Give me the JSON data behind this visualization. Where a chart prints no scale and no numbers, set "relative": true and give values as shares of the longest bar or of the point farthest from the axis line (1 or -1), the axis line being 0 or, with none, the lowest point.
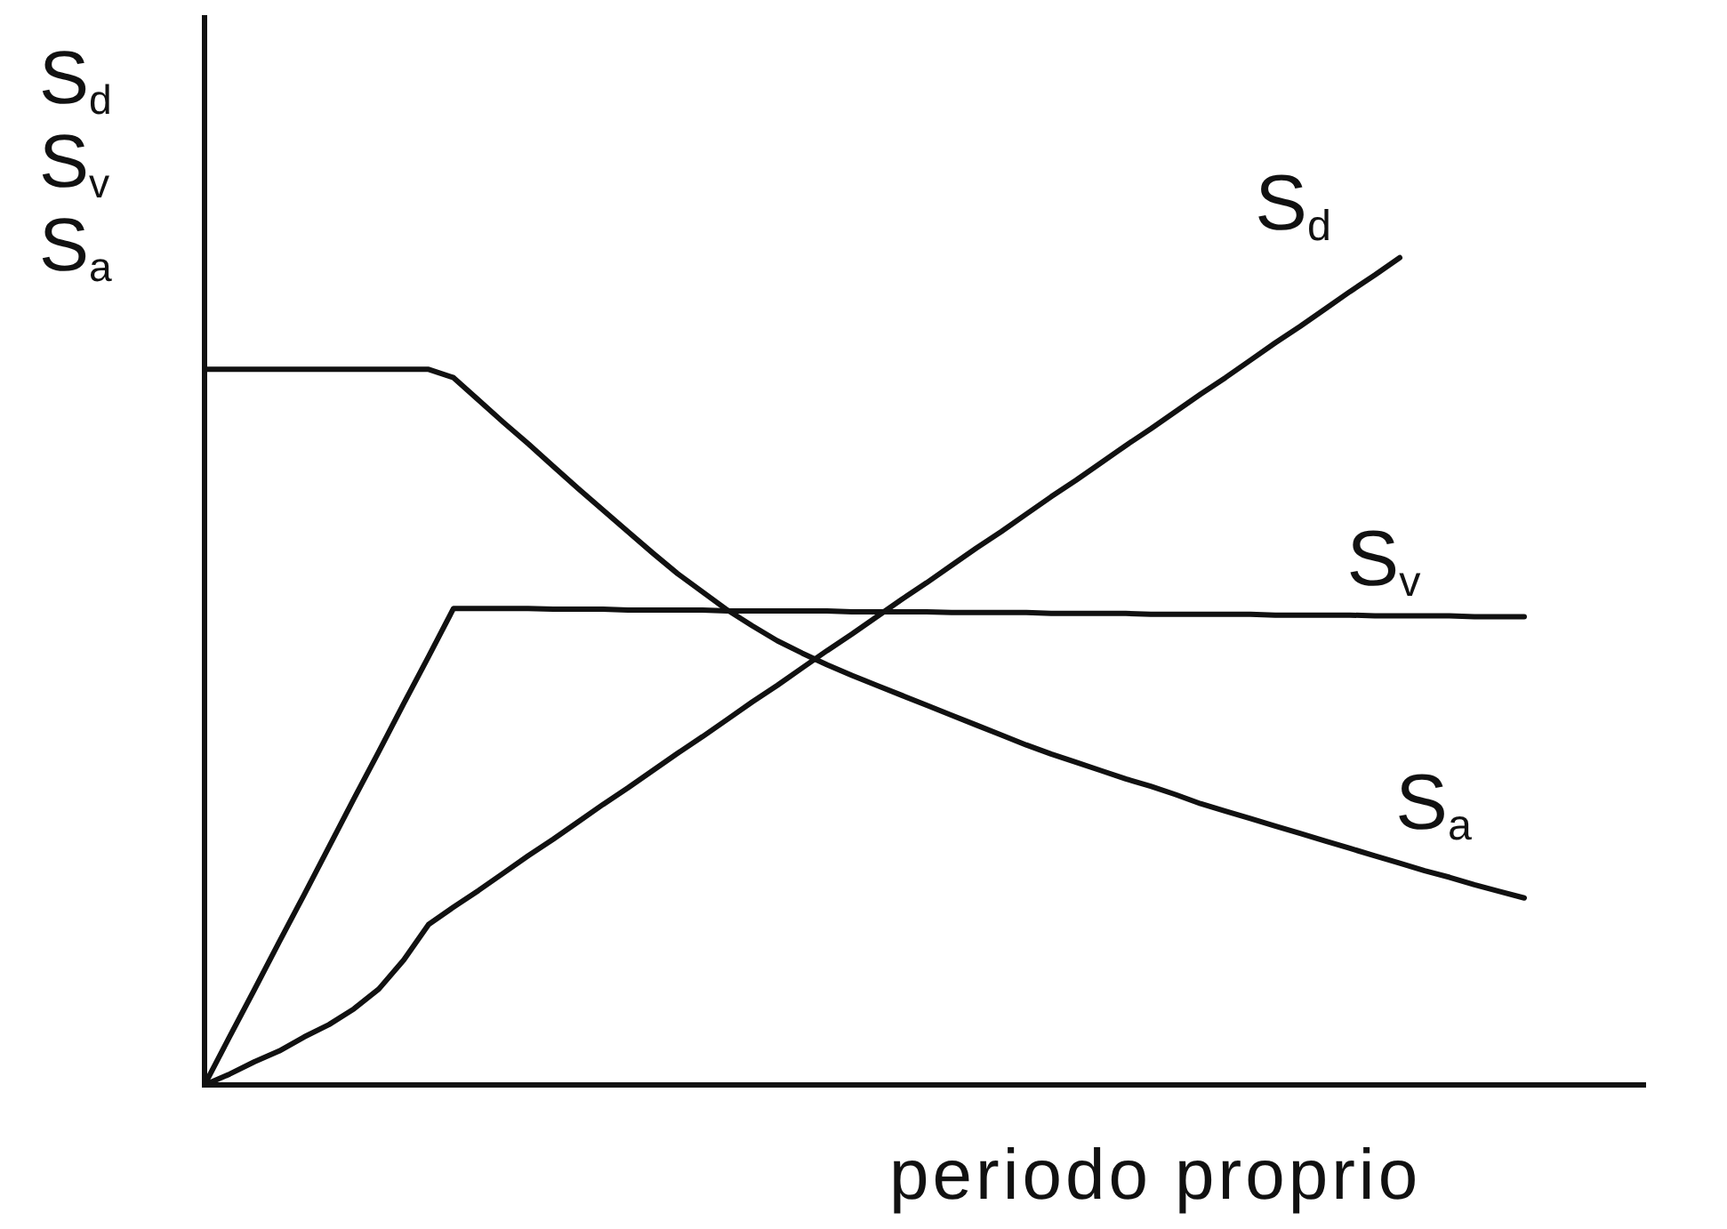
{
  "chart_data": {
    "type": "line",
    "xlabel": "periodo proprio",
    "ylabel": "S$_{d}$\nS$_{v}$\nS$_{a}$",
    "relative": true,
    "marker": "none",
    "line_style": "solid",
    "categories": [
      null,
      null,
      null,
      null,
      null,
      null,
      null,
      null,
      null,
      null,
      null,
      null,
      null,
      null,
      null,
      null,
      null,
      null,
      null,
      null,
      null,
      null,
      null,
      null,
      null,
      null,
      null,
      null,
      null,
      null,
      null,
      null,
      null,
      null,
      null,
      null,
      null,
      null,
      null,
      null,
      null,
      null,
      null,
      null,
      null,
      null,
      null,
      null,
      null,
      null,
      null,
      null,
      null,
      null
    ],
    "series": [
      {
        "name": "S$_{d}$",
        "color": "#111111",
        "values": [
          0,
          0.013,
          0.028,
          0.041,
          0.058,
          0.073,
          0.092,
          0.116,
          0.151,
          0.194,
          0.215,
          0.235,
          0.256,
          0.277,
          0.297,
          0.318,
          0.339,
          0.359,
          0.38,
          0.401,
          0.421,
          0.442,
          0.463,
          0.483,
          0.504,
          0.525,
          0.545,
          0.566,
          0.587,
          0.607,
          0.628,
          0.649,
          0.669,
          0.69,
          0.711,
          0.731,
          0.752,
          0.773,
          0.793,
          0.814,
          0.835,
          0.855,
          0.876,
          0.897,
          0.917,
          0.938,
          0.959,
          0.979,
          1,
          null,
          null,
          null,
          null,
          null
        ]
      },
      {
        "name": "S$_{v}$",
        "color": "#111111",
        "values": [
          0,
          0.058,
          0.115,
          0.173,
          0.23,
          0.288,
          0.346,
          0.403,
          0.461,
          0.518,
          0.576,
          0.576,
          0.576,
          0.576,
          0.575,
          0.575,
          0.575,
          0.574,
          0.574,
          0.574,
          0.574,
          0.573,
          0.573,
          0.573,
          0.573,
          0.573,
          0.572,
          0.572,
          0.572,
          0.572,
          0.571,
          0.571,
          0.571,
          0.571,
          0.57,
          0.57,
          0.57,
          0.57,
          0.569,
          0.569,
          0.569,
          0.569,
          0.569,
          0.568,
          0.568,
          0.568,
          0.568,
          0.567,
          0.567,
          0.567,
          0.567,
          0.566,
          0.566,
          0.566
        ]
      },
      {
        "name": "S$_{a}$",
        "color": "#111111",
        "values": [
          0.865,
          0.865,
          0.865,
          0.865,
          0.865,
          0.865,
          0.865,
          0.865,
          0.865,
          0.865,
          0.855,
          0.828,
          0.801,
          0.775,
          0.748,
          0.721,
          0.695,
          0.669,
          0.643,
          0.618,
          0.596,
          0.574,
          0.555,
          0.537,
          0.522,
          0.508,
          0.495,
          0.483,
          0.471,
          0.459,
          0.447,
          0.435,
          0.423,
          0.411,
          0.4,
          0.39,
          0.38,
          0.37,
          0.361,
          0.351,
          0.34,
          0.331,
          0.322,
          0.313,
          0.304,
          0.295,
          0.286,
          0.277,
          0.268,
          0.259,
          0.251,
          0.242,
          0.234,
          0.226
        ]
      }
    ]
  }
}
